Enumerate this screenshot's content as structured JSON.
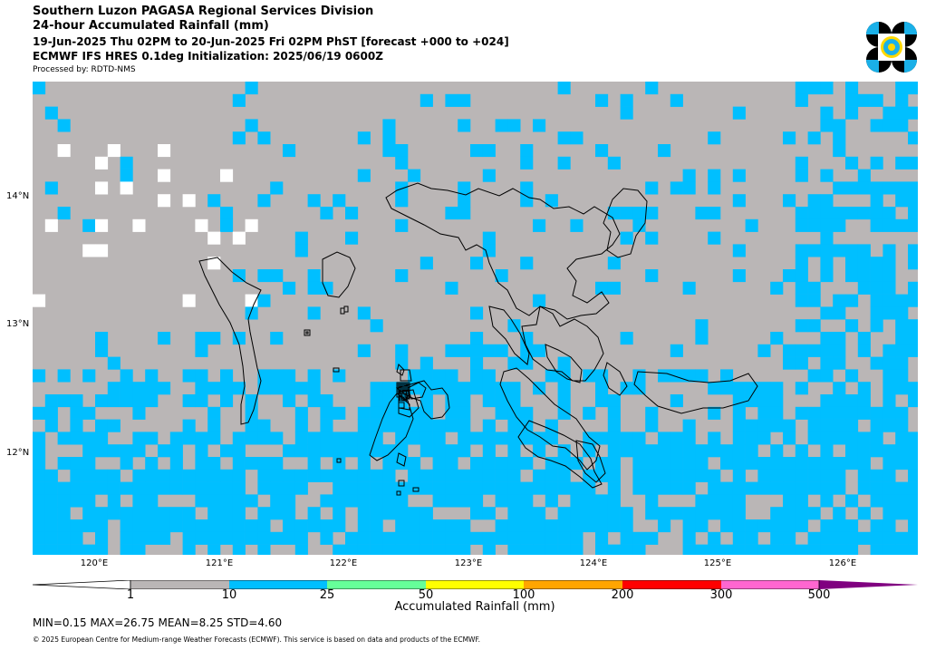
{
  "header": {
    "line1": "Southern Luzon PAGASA Regional Services Division",
    "line2": "24-hour Accumulated Rainfall (mm)",
    "line3": "19-Jun-2025 Thu 02PM to 20-Jun-2025 Fri 02PM PhST [forecast +000 to +024]",
    "line4": "ECMWF IFS HRES 0.1deg Initialization: 2025/06/19 0600Z",
    "processed_by": "Processed by: RDTD-NMS"
  },
  "map": {
    "lat_labels": [
      "14°N",
      "13°N",
      "12°N"
    ],
    "lon_labels": [
      "120°E",
      "121°E",
      "122°E",
      "123°E",
      "124°E",
      "125°E",
      "126°E"
    ]
  },
  "colorbar": {
    "ticks": [
      "1",
      "10",
      "25",
      "50",
      "100",
      "200",
      "300",
      "500"
    ],
    "label": "Accumulated Rainfall (mm)",
    "colors": [
      "#bab6b6",
      "#00bfff",
      "#66ff99",
      "#ffff00",
      "#ffa500",
      "#ff0000",
      "#ff66d0",
      "#800080"
    ]
  },
  "stats": {
    "text": "MIN=0.15   MAX=26.75   MEAN=8.25   STD=4.60",
    "min": 0.15,
    "max": 26.75,
    "mean": 8.25,
    "std": 4.6
  },
  "footer": {
    "copyright": "© 2025 European Centre for Medium-range Weather Forecasts (ECMWF). This service is based on data and products of the ECMWF."
  }
}
